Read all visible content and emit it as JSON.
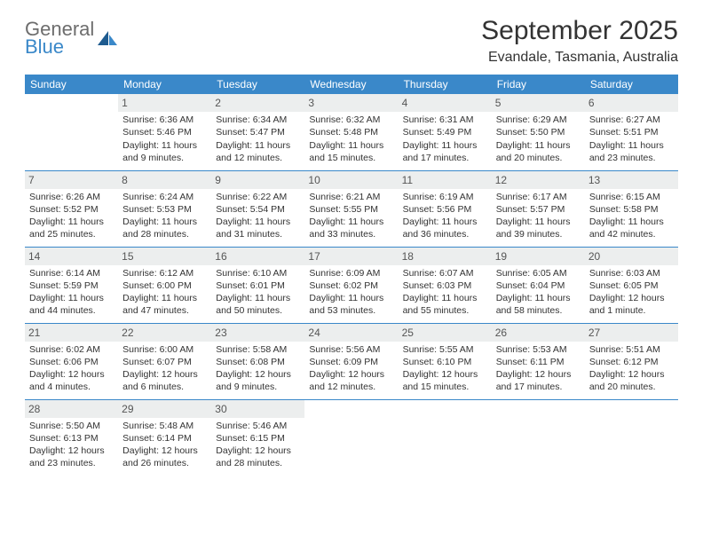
{
  "brand": {
    "line1": "General",
    "line2": "Blue"
  },
  "title": "September 2025",
  "subtitle": "Evandale, Tasmania, Australia",
  "colors": {
    "header_bg": "#3a88c9",
    "header_text": "#ffffff",
    "daynum_bg": "#eceeee",
    "row_divider": "#3a88c9",
    "logo_gray": "#6d6d6d",
    "logo_blue": "#3a88c9"
  },
  "weekdays": [
    "Sunday",
    "Monday",
    "Tuesday",
    "Wednesday",
    "Thursday",
    "Friday",
    "Saturday"
  ],
  "grid": [
    [
      null,
      {
        "n": "1",
        "sr": "6:36 AM",
        "ss": "5:46 PM",
        "dl": "11 hours and 9 minutes."
      },
      {
        "n": "2",
        "sr": "6:34 AM",
        "ss": "5:47 PM",
        "dl": "11 hours and 12 minutes."
      },
      {
        "n": "3",
        "sr": "6:32 AM",
        "ss": "5:48 PM",
        "dl": "11 hours and 15 minutes."
      },
      {
        "n": "4",
        "sr": "6:31 AM",
        "ss": "5:49 PM",
        "dl": "11 hours and 17 minutes."
      },
      {
        "n": "5",
        "sr": "6:29 AM",
        "ss": "5:50 PM",
        "dl": "11 hours and 20 minutes."
      },
      {
        "n": "6",
        "sr": "6:27 AM",
        "ss": "5:51 PM",
        "dl": "11 hours and 23 minutes."
      }
    ],
    [
      {
        "n": "7",
        "sr": "6:26 AM",
        "ss": "5:52 PM",
        "dl": "11 hours and 25 minutes."
      },
      {
        "n": "8",
        "sr": "6:24 AM",
        "ss": "5:53 PM",
        "dl": "11 hours and 28 minutes."
      },
      {
        "n": "9",
        "sr": "6:22 AM",
        "ss": "5:54 PM",
        "dl": "11 hours and 31 minutes."
      },
      {
        "n": "10",
        "sr": "6:21 AM",
        "ss": "5:55 PM",
        "dl": "11 hours and 33 minutes."
      },
      {
        "n": "11",
        "sr": "6:19 AM",
        "ss": "5:56 PM",
        "dl": "11 hours and 36 minutes."
      },
      {
        "n": "12",
        "sr": "6:17 AM",
        "ss": "5:57 PM",
        "dl": "11 hours and 39 minutes."
      },
      {
        "n": "13",
        "sr": "6:15 AM",
        "ss": "5:58 PM",
        "dl": "11 hours and 42 minutes."
      }
    ],
    [
      {
        "n": "14",
        "sr": "6:14 AM",
        "ss": "5:59 PM",
        "dl": "11 hours and 44 minutes."
      },
      {
        "n": "15",
        "sr": "6:12 AM",
        "ss": "6:00 PM",
        "dl": "11 hours and 47 minutes."
      },
      {
        "n": "16",
        "sr": "6:10 AM",
        "ss": "6:01 PM",
        "dl": "11 hours and 50 minutes."
      },
      {
        "n": "17",
        "sr": "6:09 AM",
        "ss": "6:02 PM",
        "dl": "11 hours and 53 minutes."
      },
      {
        "n": "18",
        "sr": "6:07 AM",
        "ss": "6:03 PM",
        "dl": "11 hours and 55 minutes."
      },
      {
        "n": "19",
        "sr": "6:05 AM",
        "ss": "6:04 PM",
        "dl": "11 hours and 58 minutes."
      },
      {
        "n": "20",
        "sr": "6:03 AM",
        "ss": "6:05 PM",
        "dl": "12 hours and 1 minute."
      }
    ],
    [
      {
        "n": "21",
        "sr": "6:02 AM",
        "ss": "6:06 PM",
        "dl": "12 hours and 4 minutes."
      },
      {
        "n": "22",
        "sr": "6:00 AM",
        "ss": "6:07 PM",
        "dl": "12 hours and 6 minutes."
      },
      {
        "n": "23",
        "sr": "5:58 AM",
        "ss": "6:08 PM",
        "dl": "12 hours and 9 minutes."
      },
      {
        "n": "24",
        "sr": "5:56 AM",
        "ss": "6:09 PM",
        "dl": "12 hours and 12 minutes."
      },
      {
        "n": "25",
        "sr": "5:55 AM",
        "ss": "6:10 PM",
        "dl": "12 hours and 15 minutes."
      },
      {
        "n": "26",
        "sr": "5:53 AM",
        "ss": "6:11 PM",
        "dl": "12 hours and 17 minutes."
      },
      {
        "n": "27",
        "sr": "5:51 AM",
        "ss": "6:12 PM",
        "dl": "12 hours and 20 minutes."
      }
    ],
    [
      {
        "n": "28",
        "sr": "5:50 AM",
        "ss": "6:13 PM",
        "dl": "12 hours and 23 minutes."
      },
      {
        "n": "29",
        "sr": "5:48 AM",
        "ss": "6:14 PM",
        "dl": "12 hours and 26 minutes."
      },
      {
        "n": "30",
        "sr": "5:46 AM",
        "ss": "6:15 PM",
        "dl": "12 hours and 28 minutes."
      },
      null,
      null,
      null,
      null
    ]
  ],
  "labels": {
    "sunrise": "Sunrise:",
    "sunset": "Sunset:",
    "daylight": "Daylight:"
  }
}
